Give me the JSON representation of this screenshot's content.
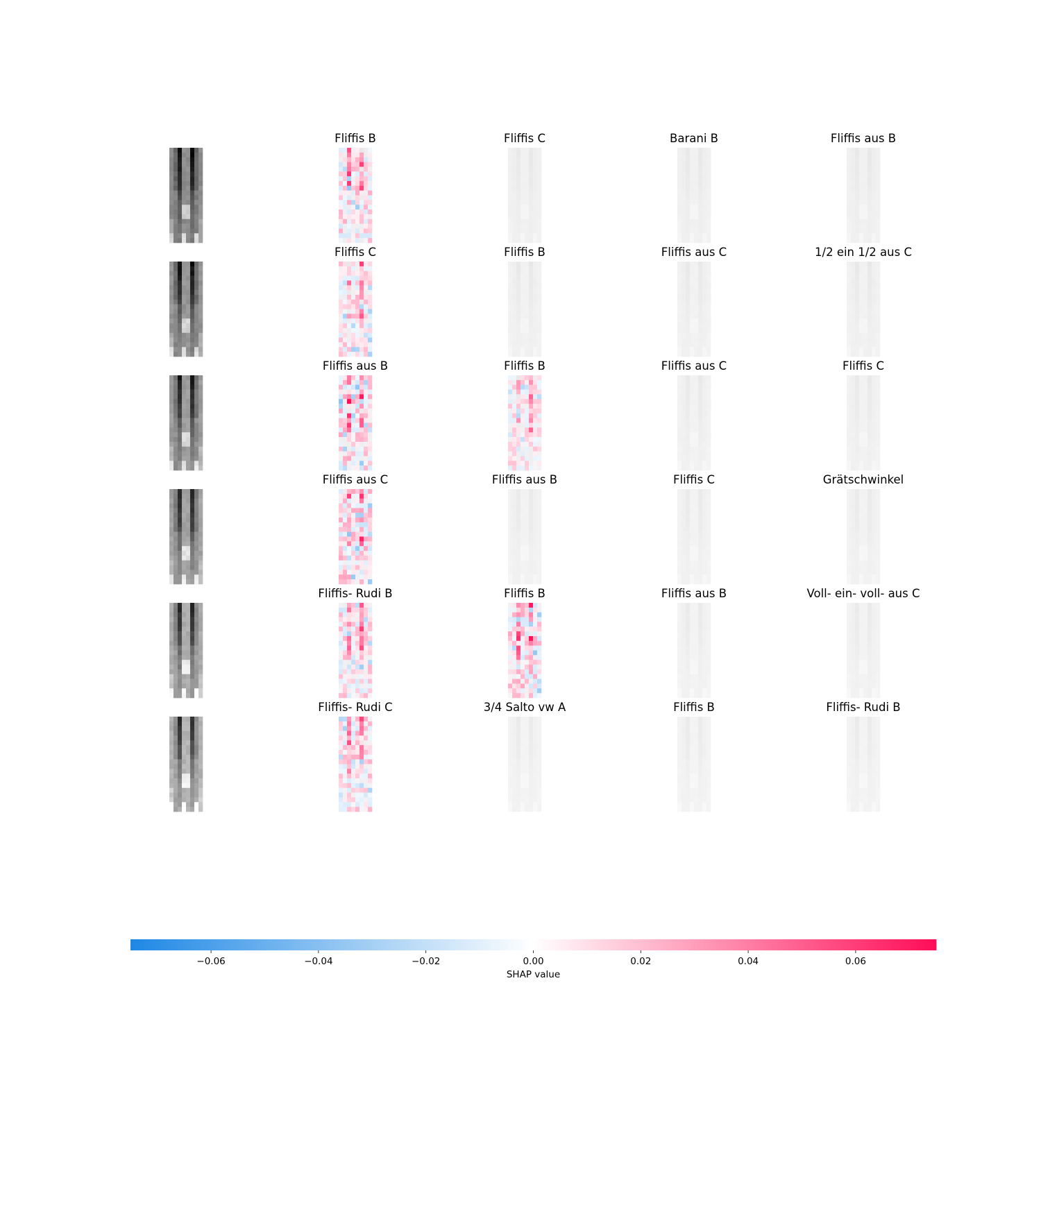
{
  "chart_data": {
    "type": "heatmap",
    "description_kind": "SHAP image explanation grid",
    "rows": [
      {
        "labels": [
          "Fliffis B",
          "Fliffis C",
          "Barani B",
          "Fliffis aus B"
        ],
        "intensity": [
          0.55,
          0.0,
          0.0,
          0.0
        ]
      },
      {
        "labels": [
          "Fliffis C",
          "Fliffis B",
          "Fliffis aus C",
          "1/2 ein 1/2 aus C"
        ],
        "intensity": [
          0.5,
          0.0,
          0.0,
          0.0
        ]
      },
      {
        "labels": [
          "Fliffis aus B",
          "Fliffis B",
          "Fliffis aus C",
          "Fliffis C"
        ],
        "intensity": [
          0.6,
          0.4,
          0.0,
          0.0
        ]
      },
      {
        "labels": [
          "Fliffis aus C",
          "Fliffis aus B",
          "Fliffis C",
          "Grätschwinkel"
        ],
        "intensity": [
          0.6,
          0.0,
          0.0,
          0.0
        ]
      },
      {
        "labels": [
          "Fliffis- Rudi B",
          "Fliffis B",
          "Fliffis aus B",
          "Voll- ein- voll- aus C"
        ],
        "intensity": [
          0.5,
          0.6,
          0.0,
          0.0
        ]
      },
      {
        "labels": [
          "Fliffis- Rudi C",
          "3/4 Salto vw A",
          "Fliffis B",
          "Fliffis- Rudi B"
        ],
        "intensity": [
          0.55,
          0.0,
          0.0,
          0.0
        ]
      }
    ],
    "colorbar": {
      "label": "SHAP value",
      "min": -0.075,
      "max": 0.075,
      "ticks": [
        -0.06,
        -0.04,
        -0.02,
        0.0,
        0.02,
        0.04,
        0.06
      ],
      "tick_labels": [
        "−0.06",
        "−0.04",
        "−0.02",
        "0.00",
        "0.02",
        "0.04",
        "0.06"
      ],
      "color_negative": "#1e88e5",
      "color_zero": "#ffffff",
      "color_positive": "#ff0d57"
    }
  }
}
